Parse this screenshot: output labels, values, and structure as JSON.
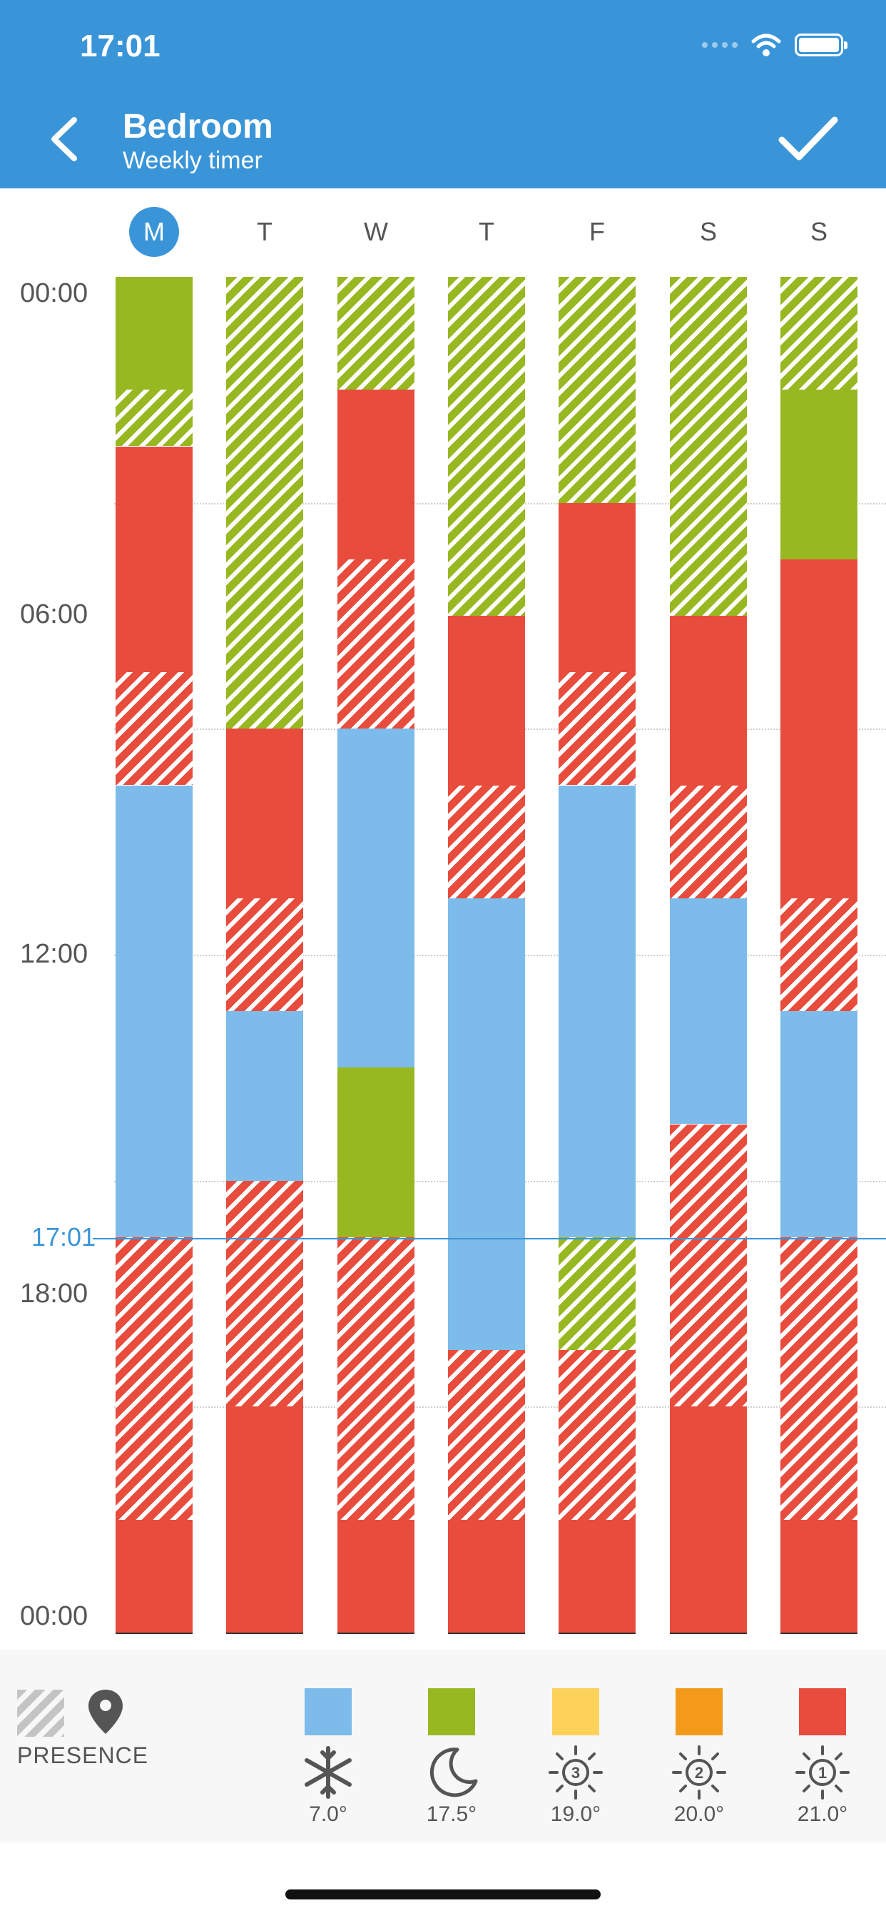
{
  "status_bar": {
    "time": "17:01"
  },
  "header": {
    "title": "Bedroom",
    "subtitle": "Weekly timer"
  },
  "days": [
    "M",
    "T",
    "W",
    "T",
    "F",
    "S",
    "S"
  ],
  "active_day_index": 0,
  "time_axis": {
    "labels": [
      "00:00",
      "06:00",
      "12:00",
      "18:00",
      "00:00"
    ],
    "current_time": "17:01",
    "current_hour": 17.0167
  },
  "colors": {
    "cold": "#7dbbea",
    "night": "#98b822",
    "comfort3": "#fdd25a",
    "comfort2": "#f49a1a",
    "comfort1": "#e84c3d",
    "accent": "#3a95d8"
  },
  "schedule": [
    [
      {
        "from": 0,
        "to": 4,
        "mode": "night",
        "presence": false
      },
      {
        "from": 4,
        "to": 6,
        "mode": "night",
        "presence": true
      },
      {
        "from": 6,
        "to": 14,
        "mode": "comfort1",
        "presence": false
      },
      {
        "from": 14,
        "to": 18,
        "mode": "comfort1",
        "presence": true
      },
      {
        "from": 18,
        "to": 34,
        "mode": "cold",
        "presence": false
      },
      {
        "from": 34,
        "to": 44,
        "mode": "comfort1",
        "presence": true
      },
      {
        "from": 44,
        "to": 48,
        "mode": "comfort1",
        "presence": false
      }
    ],
    [
      {
        "from": 0,
        "to": 16,
        "mode": "night",
        "presence": true
      },
      {
        "from": 16,
        "to": 22,
        "mode": "comfort1",
        "presence": false
      },
      {
        "from": 22,
        "to": 26,
        "mode": "comfort1",
        "presence": true
      },
      {
        "from": 26,
        "to": 32,
        "mode": "cold",
        "presence": false
      },
      {
        "from": 32,
        "to": 40,
        "mode": "comfort1",
        "presence": true
      },
      {
        "from": 40,
        "to": 48,
        "mode": "comfort1",
        "presence": false
      }
    ],
    [
      {
        "from": 0,
        "to": 4,
        "mode": "night",
        "presence": true
      },
      {
        "from": 4,
        "to": 10,
        "mode": "comfort1",
        "presence": false
      },
      {
        "from": 10,
        "to": 16,
        "mode": "comfort1",
        "presence": true
      },
      {
        "from": 16,
        "to": 28,
        "mode": "cold",
        "presence": false
      },
      {
        "from": 28,
        "to": 34,
        "mode": "night",
        "presence": false
      },
      {
        "from": 34,
        "to": 44,
        "mode": "comfort1",
        "presence": true
      },
      {
        "from": 44,
        "to": 48,
        "mode": "comfort1",
        "presence": false
      }
    ],
    [
      {
        "from": 0,
        "to": 12,
        "mode": "night",
        "presence": true
      },
      {
        "from": 12,
        "to": 18,
        "mode": "comfort1",
        "presence": false
      },
      {
        "from": 18,
        "to": 22,
        "mode": "comfort1",
        "presence": true
      },
      {
        "from": 22,
        "to": 38,
        "mode": "cold",
        "presence": false
      },
      {
        "from": 38,
        "to": 44,
        "mode": "comfort1",
        "presence": true
      },
      {
        "from": 44,
        "to": 48,
        "mode": "comfort1",
        "presence": false
      }
    ],
    [
      {
        "from": 0,
        "to": 8,
        "mode": "night",
        "presence": true
      },
      {
        "from": 8,
        "to": 14,
        "mode": "comfort1",
        "presence": false
      },
      {
        "from": 14,
        "to": 18,
        "mode": "comfort1",
        "presence": true
      },
      {
        "from": 18,
        "to": 34,
        "mode": "cold",
        "presence": false
      },
      {
        "from": 34,
        "to": 38,
        "mode": "night",
        "presence": true
      },
      {
        "from": 38,
        "to": 44,
        "mode": "comfort1",
        "presence": true
      },
      {
        "from": 44,
        "to": 48,
        "mode": "comfort1",
        "presence": false
      }
    ],
    [
      {
        "from": 0,
        "to": 12,
        "mode": "night",
        "presence": true
      },
      {
        "from": 12,
        "to": 18,
        "mode": "comfort1",
        "presence": false
      },
      {
        "from": 18,
        "to": 22,
        "mode": "comfort1",
        "presence": true
      },
      {
        "from": 22,
        "to": 30,
        "mode": "cold",
        "presence": false
      },
      {
        "from": 30,
        "to": 40,
        "mode": "comfort1",
        "presence": true
      },
      {
        "from": 40,
        "to": 48,
        "mode": "comfort1",
        "presence": false
      }
    ],
    [
      {
        "from": 0,
        "to": 4,
        "mode": "night",
        "presence": true
      },
      {
        "from": 4,
        "to": 10,
        "mode": "night",
        "presence": false
      },
      {
        "from": 10,
        "to": 22,
        "mode": "comfort1",
        "presence": false
      },
      {
        "from": 22,
        "to": 26,
        "mode": "comfort1",
        "presence": true
      },
      {
        "from": 26,
        "to": 34,
        "mode": "cold",
        "presence": false
      },
      {
        "from": 34,
        "to": 44,
        "mode": "comfort1",
        "presence": true
      },
      {
        "from": 44,
        "to": 48,
        "mode": "comfort1",
        "presence": false
      }
    ]
  ],
  "legend": {
    "presence_label": "PRESENCE",
    "items": [
      {
        "mode": "cold",
        "color": "#7dbbea",
        "icon": "snowflake-icon",
        "temp": "7.0°"
      },
      {
        "mode": "night",
        "color": "#98b822",
        "icon": "moon-icon",
        "temp": "17.5°"
      },
      {
        "mode": "comfort3",
        "color": "#fdd25a",
        "icon": "sun-3-icon",
        "temp": "19.0°",
        "badge": "3"
      },
      {
        "mode": "comfort2",
        "color": "#f49a1a",
        "icon": "sun-2-icon",
        "temp": "20.0°",
        "badge": "2"
      },
      {
        "mode": "comfort1",
        "color": "#e84c3d",
        "icon": "sun-1-icon",
        "temp": "21.0°",
        "badge": "1"
      }
    ]
  }
}
